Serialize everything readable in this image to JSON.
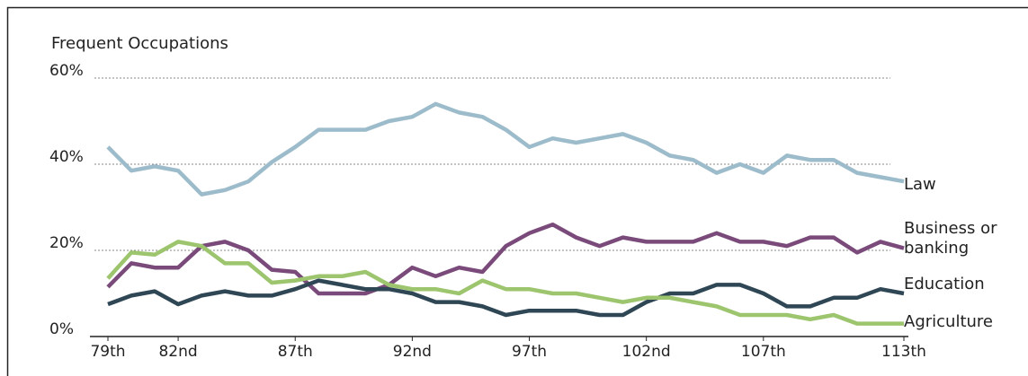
{
  "chart_data": {
    "type": "line",
    "title": "Frequent Occupations",
    "categories": [
      "79th",
      null,
      null,
      "82nd",
      null,
      null,
      null,
      null,
      "87th",
      null,
      null,
      null,
      null,
      "92nd",
      null,
      null,
      null,
      null,
      "97th",
      null,
      null,
      null,
      null,
      "102nd",
      null,
      null,
      null,
      null,
      "107th",
      null,
      null,
      null,
      null,
      null,
      "113th"
    ],
    "ylim": [
      0,
      60
    ],
    "yticks": [
      {
        "value": 0,
        "label": "0%"
      },
      {
        "value": 20,
        "label": "20%"
      },
      {
        "value": 40,
        "label": "40%"
      },
      {
        "value": 60,
        "label": "60%"
      }
    ],
    "grid": true,
    "series": [
      {
        "name": "Law",
        "color": "#9dbccb",
        "values": [
          44,
          38.5,
          39.5,
          38.5,
          33,
          34,
          36,
          40.5,
          44,
          48,
          48,
          48,
          50,
          51,
          54,
          52,
          51,
          48,
          44,
          46,
          45,
          46,
          47,
          45,
          42,
          41,
          38,
          40,
          38,
          42,
          41,
          41,
          38,
          37,
          36
        ]
      },
      {
        "name": "Business or banking",
        "color": "#7a4a7a",
        "values": [
          11.5,
          17,
          16,
          16,
          21,
          22,
          20,
          15.5,
          15,
          10,
          10,
          10,
          12,
          16,
          14,
          16,
          15,
          21,
          24,
          26,
          23,
          21,
          23,
          22,
          22,
          22,
          24,
          22,
          22,
          21,
          23,
          23,
          19.5,
          22,
          20.5
        ]
      },
      {
        "name": "Education",
        "color": "#2f4655",
        "values": [
          7.5,
          9.5,
          10.5,
          7.5,
          9.5,
          10.5,
          9.5,
          9.5,
          11,
          13,
          12,
          11,
          11,
          10,
          8,
          8,
          7,
          5,
          6,
          6,
          6,
          5,
          5,
          8,
          10,
          10,
          12,
          12,
          10,
          7,
          7,
          9,
          9,
          11,
          10
        ]
      },
      {
        "name": "Agriculture",
        "color": "#9cc56e",
        "values": [
          13.5,
          19.5,
          19,
          22,
          21,
          17,
          17,
          12.5,
          13,
          14,
          14,
          15,
          12,
          11,
          11,
          10,
          13,
          11,
          11,
          10,
          10,
          9,
          8,
          9,
          9,
          8,
          7,
          5,
          5,
          5,
          4,
          5,
          3,
          3,
          3
        ]
      }
    ]
  }
}
